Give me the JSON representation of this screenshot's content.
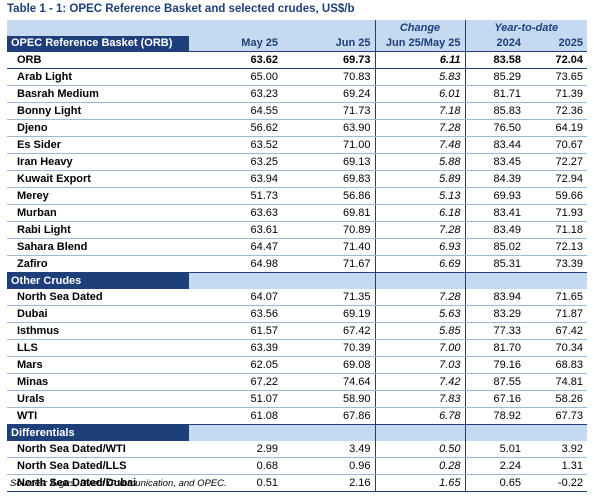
{
  "title": "Table 1 - 1: OPEC Reference Basket and selected crudes, US$/b",
  "header": {
    "change_label": "Change",
    "ytd_label": "Year-to-date",
    "orb_section": "OPEC Reference Basket (ORB)",
    "col_may25": "May 25",
    "col_jun25": "Jun 25",
    "col_change": "Jun 25/May 25",
    "col_2024": "2024",
    "col_2025": "2025"
  },
  "orb": {
    "name": "ORB",
    "may25": "63.62",
    "jun25": "69.73",
    "change": "6.11",
    "ytd2024": "83.58",
    "ytd2025": "72.04"
  },
  "basket": [
    {
      "name": "Arab Light",
      "may25": "65.00",
      "jun25": "70.83",
      "change": "5.83",
      "ytd2024": "85.29",
      "ytd2025": "73.65"
    },
    {
      "name": "Basrah Medium",
      "may25": "63.23",
      "jun25": "69.24",
      "change": "6.01",
      "ytd2024": "81.71",
      "ytd2025": "71.39"
    },
    {
      "name": "Bonny Light",
      "may25": "64.55",
      "jun25": "71.73",
      "change": "7.18",
      "ytd2024": "85.83",
      "ytd2025": "72.36"
    },
    {
      "name": "Djeno",
      "may25": "56.62",
      "jun25": "63.90",
      "change": "7.28",
      "ytd2024": "76.50",
      "ytd2025": "64.19"
    },
    {
      "name": "Es Sider",
      "may25": "63.52",
      "jun25": "71.00",
      "change": "7.48",
      "ytd2024": "83.44",
      "ytd2025": "70.67"
    },
    {
      "name": "Iran Heavy",
      "may25": "63.25",
      "jun25": "69.13",
      "change": "5.88",
      "ytd2024": "83.45",
      "ytd2025": "72.27"
    },
    {
      "name": "Kuwait Export",
      "may25": "63.94",
      "jun25": "69.83",
      "change": "5.89",
      "ytd2024": "84.39",
      "ytd2025": "72.94"
    },
    {
      "name": "Merey",
      "may25": "51.73",
      "jun25": "56.86",
      "change": "5.13",
      "ytd2024": "69.93",
      "ytd2025": "59.66"
    },
    {
      "name": "Murban",
      "may25": "63.63",
      "jun25": "69.81",
      "change": "6.18",
      "ytd2024": "83.41",
      "ytd2025": "71.93"
    },
    {
      "name": "Rabi Light",
      "may25": "63.61",
      "jun25": "70.89",
      "change": "7.28",
      "ytd2024": "83.49",
      "ytd2025": "71.18"
    },
    {
      "name": "Sahara Blend",
      "may25": "64.47",
      "jun25": "71.40",
      "change": "6.93",
      "ytd2024": "85.02",
      "ytd2025": "72.13"
    },
    {
      "name": "Zafiro",
      "may25": "64.98",
      "jun25": "71.67",
      "change": "6.69",
      "ytd2024": "85.31",
      "ytd2025": "73.39"
    }
  ],
  "other_section": "Other Crudes",
  "other": [
    {
      "name": "North Sea Dated",
      "may25": "64.07",
      "jun25": "71.35",
      "change": "7.28",
      "ytd2024": "83.94",
      "ytd2025": "71.65"
    },
    {
      "name": "Dubai",
      "may25": "63.56",
      "jun25": "69.19",
      "change": "5.63",
      "ytd2024": "83.29",
      "ytd2025": "71.87"
    },
    {
      "name": "Isthmus",
      "may25": "61.57",
      "jun25": "67.42",
      "change": "5.85",
      "ytd2024": "77.33",
      "ytd2025": "67.42"
    },
    {
      "name": "LLS",
      "may25": "63.39",
      "jun25": "70.39",
      "change": "7.00",
      "ytd2024": "81.70",
      "ytd2025": "70.34"
    },
    {
      "name": "Mars",
      "may25": "62.05",
      "jun25": "69.08",
      "change": "7.03",
      "ytd2024": "79.16",
      "ytd2025": "68.83"
    },
    {
      "name": "Minas",
      "may25": "67.22",
      "jun25": "74.64",
      "change": "7.42",
      "ytd2024": "87.55",
      "ytd2025": "74.81"
    },
    {
      "name": "Urals",
      "may25": "51.07",
      "jun25": "58.90",
      "change": "7.83",
      "ytd2024": "67.16",
      "ytd2025": "58.26"
    },
    {
      "name": "WTI",
      "may25": "61.08",
      "jun25": "67.86",
      "change": "6.78",
      "ytd2024": "78.92",
      "ytd2025": "67.73"
    }
  ],
  "diff_section": "Differentials",
  "differentials": [
    {
      "name": "North Sea Dated/WTI",
      "may25": "2.99",
      "jun25": "3.49",
      "change": "0.50",
      "ytd2024": "5.01",
      "ytd2025": "3.92"
    },
    {
      "name": "North Sea Dated/LLS",
      "may25": "0.68",
      "jun25": "0.96",
      "change": "0.28",
      "ytd2024": "2.24",
      "ytd2025": "1.31"
    },
    {
      "name": "North Sea Dated/Dubai",
      "may25": "0.51",
      "jun25": "2.16",
      "change": "1.65",
      "ytd2024": "0.65",
      "ytd2025": "-0.22"
    }
  ],
  "source": "Sources:  Argus, Direct Communication, and OPEC."
}
